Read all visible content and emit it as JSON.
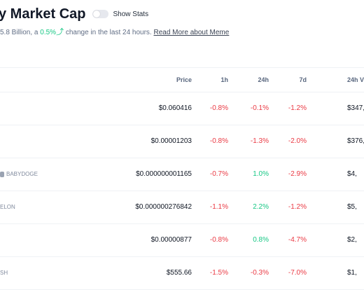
{
  "header": {
    "title": "y Market Cap",
    "toggle_label": "Show Stats",
    "subtitle": {
      "prefix": "5.8 Billion, a ",
      "change": "0.5%",
      "arrow": "⤴",
      "suffix": " change in the last 24 hours. ",
      "link": "Read More about Meme"
    }
  },
  "table": {
    "columns": [
      "Price",
      "1h",
      "24h",
      "7d",
      "24h V"
    ],
    "rows": [
      {
        "symbol": "",
        "price": "$0.060416",
        "h1": "-0.8%",
        "h24": "-0.1%",
        "d7": "-1.2%",
        "volume": "$347,"
      },
      {
        "symbol": "",
        "price": "$0.00001203",
        "h1": "-0.8%",
        "h24": "-1.3%",
        "d7": "-2.0%",
        "volume": "$376,"
      },
      {
        "symbol": "BABYDOGE",
        "price": "$0.000000001165",
        "h1": "-0.7%",
        "h24": "1.0%",
        "d7": "-2.9%",
        "volume": "$4,"
      },
      {
        "symbol": "ELON",
        "price": "$0.000000276842",
        "h1": "-1.1%",
        "h24": "2.2%",
        "d7": "-1.2%",
        "volume": "$5,"
      },
      {
        "symbol": "",
        "price": "$0.00000877",
        "h1": "-0.8%",
        "h24": "0.8%",
        "d7": "-4.7%",
        "volume": "$2,"
      },
      {
        "symbol": "SH",
        "price": "$555.66",
        "h1": "-1.5%",
        "h24": "-0.3%",
        "d7": "-7.0%",
        "volume": "$1,"
      }
    ]
  },
  "colors": {
    "negative": "#ea3943",
    "positive": "#16c784",
    "text": "#0d1421",
    "muted": "#616e85"
  }
}
